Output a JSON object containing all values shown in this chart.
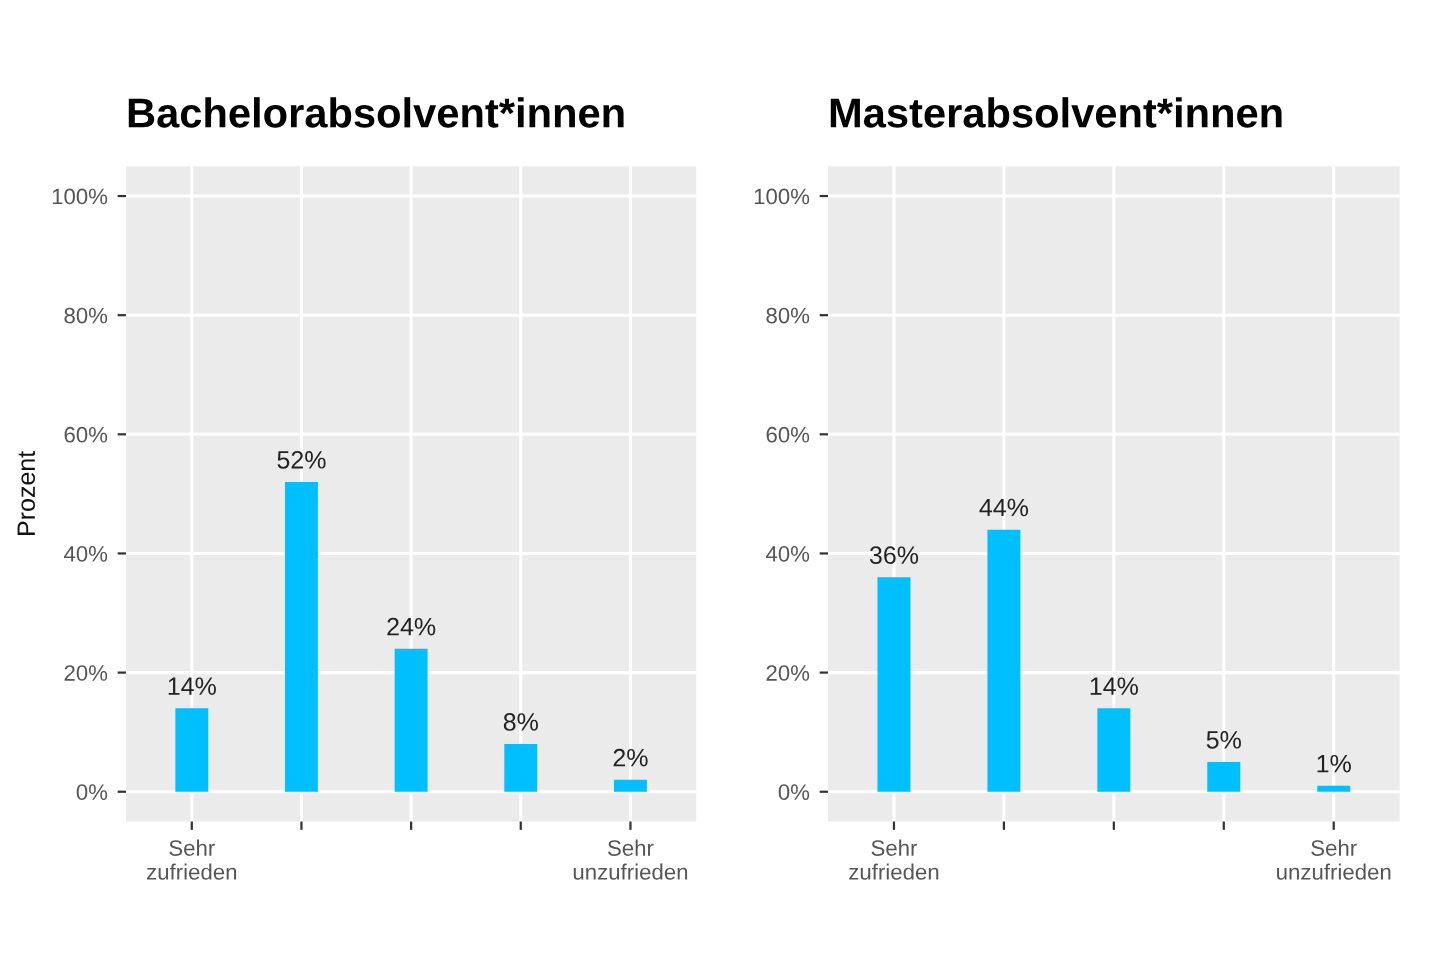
{
  "chart_data": [
    {
      "type": "bar",
      "title": "Bachelorabsolvent*innen",
      "ylabel": "Prozent",
      "categories": [
        "Sehr\nzufrieden",
        null,
        null,
        null,
        "Sehr\nunzufrieden"
      ],
      "values": [
        14,
        52,
        24,
        8,
        2
      ],
      "value_labels": [
        "14%",
        "52%",
        "24%",
        "8%",
        "2%"
      ],
      "color": "#00bfff",
      "ylim": [
        -5,
        105
      ],
      "yticks": [
        {
          "value": 0,
          "label": "0%"
        },
        {
          "value": 20,
          "label": "20%"
        },
        {
          "value": 40,
          "label": "40%"
        },
        {
          "value": 60,
          "label": "60%"
        },
        {
          "value": 80,
          "label": "80%"
        },
        {
          "value": 100,
          "label": "100%"
        }
      ],
      "grid": true
    },
    {
      "type": "bar",
      "title": "Masterabsolvent*innen",
      "categories": [
        "Sehr\nzufrieden",
        null,
        null,
        null,
        "Sehr\nunzufrieden"
      ],
      "values": [
        36,
        44,
        14,
        5,
        1
      ],
      "value_labels": [
        "36%",
        "44%",
        "14%",
        "5%",
        "1%"
      ],
      "color": "#00bfff",
      "ylim": [
        -5,
        105
      ],
      "yticks": [
        {
          "value": 0,
          "label": "0%"
        },
        {
          "value": 20,
          "label": "20%"
        },
        {
          "value": 40,
          "label": "40%"
        },
        {
          "value": 60,
          "label": "60%"
        },
        {
          "value": 80,
          "label": "80%"
        },
        {
          "value": 100,
          "label": "100%"
        }
      ],
      "grid": true
    }
  ]
}
